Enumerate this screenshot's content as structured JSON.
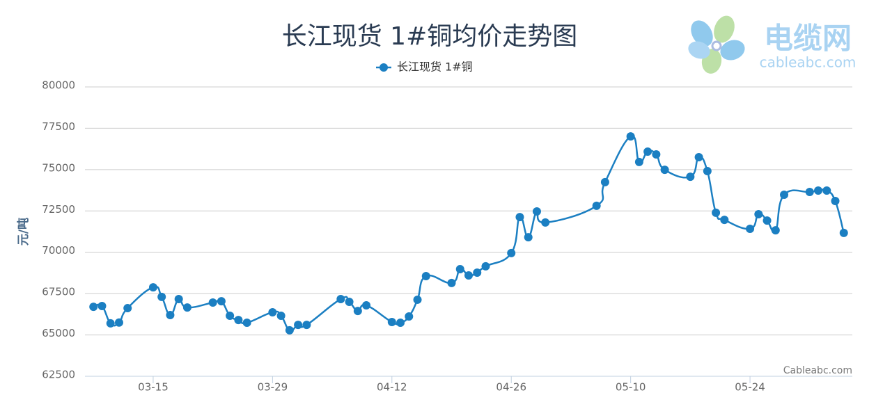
{
  "chart_data": {
    "type": "line",
    "title": "长江现货 1#铜均价走势图",
    "y_label": "元/吨",
    "credit": "Cableabc.com",
    "logo_title": "电缆网",
    "logo_subtitle": "cableabc.com",
    "x": [
      "03-08",
      "03-09",
      "03-10",
      "03-11",
      "03-12",
      "03-15",
      "03-16",
      "03-17",
      "03-18",
      "03-19",
      "03-22",
      "03-23",
      "03-24",
      "03-25",
      "03-26",
      "03-29",
      "03-30",
      "03-31",
      "04-01",
      "04-02",
      "04-06",
      "04-07",
      "04-08",
      "04-09",
      "04-12",
      "04-13",
      "04-14",
      "04-15",
      "04-16",
      "04-19",
      "04-20",
      "04-21",
      "04-22",
      "04-23",
      "04-26",
      "04-27",
      "04-28",
      "04-29",
      "04-30",
      "05-06",
      "05-07",
      "05-10",
      "05-11",
      "05-12",
      "05-13",
      "05-14",
      "05-17",
      "05-18",
      "05-19",
      "05-20",
      "05-21",
      "05-24",
      "05-25",
      "05-26",
      "05-27",
      "05-28",
      "05-31",
      "06-01",
      "06-02",
      "06-03",
      "06-04"
    ],
    "series": [
      {
        "name": "长江现货 1#铜",
        "color": "#1b7fc2",
        "values": [
          66700,
          66750,
          65700,
          65750,
          66620,
          67880,
          67300,
          66200,
          67170,
          66660,
          66960,
          67040,
          66160,
          65900,
          65740,
          66370,
          66160,
          65280,
          65610,
          65610,
          67170,
          67000,
          66450,
          66790,
          65780,
          65740,
          66120,
          67130,
          68560,
          68140,
          68980,
          68600,
          68770,
          69150,
          69950,
          72130,
          70910,
          72470,
          71800,
          72810,
          74240,
          77010,
          75460,
          76090,
          75920,
          74990,
          74570,
          75750,
          74910,
          72390,
          71960,
          71420,
          72300,
          71920,
          71330,
          73480,
          73650,
          73730,
          73730,
          73100,
          71170
        ]
      }
    ],
    "xlim": [
      "03-07",
      "06-05"
    ],
    "xticks": [
      "03-15",
      "03-29",
      "04-12",
      "04-26",
      "05-10",
      "05-24"
    ],
    "ylim": [
      62500,
      80000
    ],
    "yticks": [
      62500,
      65000,
      67500,
      70000,
      72500,
      75000,
      77500,
      80000
    ],
    "grid": true
  }
}
